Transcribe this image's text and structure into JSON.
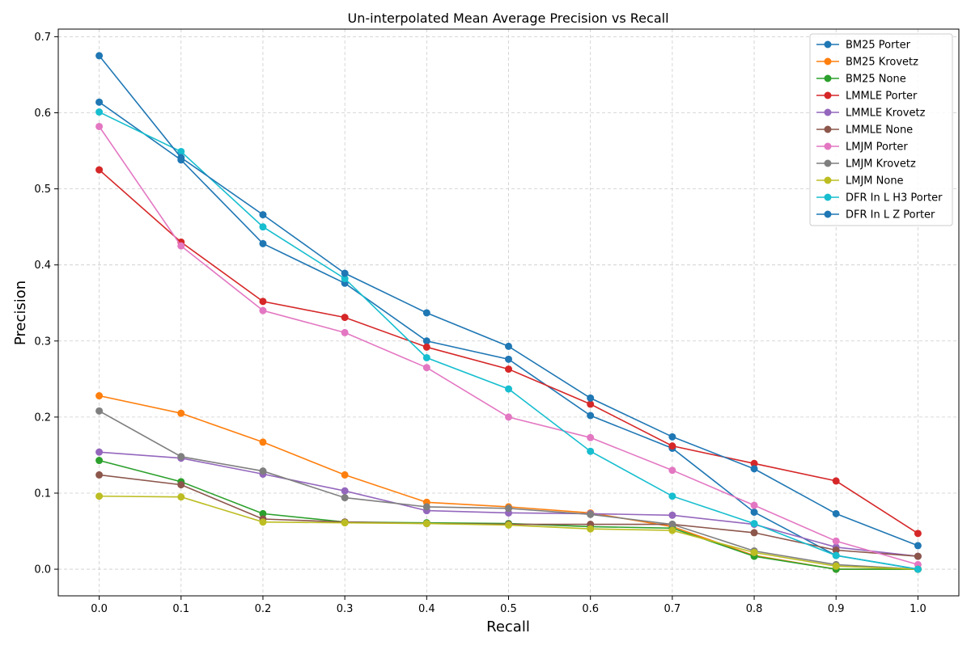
{
  "chart_data": {
    "type": "line",
    "title": "Un-interpolated Mean Average Precision vs Recall",
    "xlabel": "Recall",
    "ylabel": "Precision",
    "xlim": [
      -0.05,
      1.05
    ],
    "ylim": [
      -0.035,
      0.71
    ],
    "x_ticks": [
      "0.0",
      "0.1",
      "0.2",
      "0.3",
      "0.4",
      "0.5",
      "0.6",
      "0.7",
      "0.8",
      "0.9",
      "1.0"
    ],
    "y_ticks": [
      "0.0",
      "0.1",
      "0.2",
      "0.3",
      "0.4",
      "0.5",
      "0.6",
      "0.7"
    ],
    "grid": true,
    "legend_position": "top-right",
    "x": [
      0.0,
      0.1,
      0.2,
      0.3,
      0.4,
      0.5,
      0.6,
      0.7,
      0.8,
      0.9,
      1.0
    ],
    "series": [
      {
        "name": "BM25 Porter",
        "color": "#1f77b4",
        "values": [
          0.614,
          0.538,
          0.428,
          0.376,
          0.3,
          0.276,
          0.202,
          0.159,
          0.075,
          0.018,
          0.0
        ]
      },
      {
        "name": "BM25 Krovetz",
        "color": "#ff7f0e",
        "values": [
          0.228,
          0.205,
          0.167,
          0.124,
          0.088,
          0.082,
          0.074,
          0.056,
          0.018,
          0.0,
          0.0
        ]
      },
      {
        "name": "BM25 None",
        "color": "#2ca02c",
        "values": [
          0.143,
          0.115,
          0.073,
          0.062,
          0.061,
          0.06,
          0.056,
          0.054,
          0.017,
          0.0,
          0.0
        ]
      },
      {
        "name": "LMMLE Porter",
        "color": "#d62728",
        "values": [
          0.525,
          0.43,
          0.352,
          0.331,
          0.292,
          0.263,
          0.217,
          0.162,
          0.139,
          0.116,
          0.047
        ]
      },
      {
        "name": "LMMLE Krovetz",
        "color": "#9467bd",
        "values": [
          0.154,
          0.146,
          0.125,
          0.103,
          0.077,
          0.074,
          0.073,
          0.071,
          0.059,
          0.029,
          0.017
        ]
      },
      {
        "name": "LMMLE None",
        "color": "#8c564b",
        "values": [
          0.124,
          0.111,
          0.066,
          0.062,
          0.06,
          0.059,
          0.059,
          0.059,
          0.048,
          0.025,
          0.017
        ]
      },
      {
        "name": "LMJM Porter",
        "color": "#e377c2",
        "values": [
          0.582,
          0.425,
          0.34,
          0.311,
          0.265,
          0.2,
          0.173,
          0.13,
          0.084,
          0.037,
          0.006
        ]
      },
      {
        "name": "LMJM Krovetz",
        "color": "#7f7f7f",
        "values": [
          0.208,
          0.148,
          0.129,
          0.094,
          0.082,
          0.08,
          0.072,
          0.059,
          0.024,
          0.006,
          0.0
        ]
      },
      {
        "name": "LMJM None",
        "color": "#bcbd22",
        "values": [
          0.096,
          0.095,
          0.062,
          0.061,
          0.06,
          0.058,
          0.053,
          0.051,
          0.022,
          0.004,
          0.0
        ]
      },
      {
        "name": "DFR In L H3 Porter",
        "color": "#17becf",
        "values": [
          0.601,
          0.549,
          0.45,
          0.382,
          0.278,
          0.237,
          0.155,
          0.096,
          0.06,
          0.018,
          0.0
        ]
      },
      {
        "name": "DFR In L Z Porter",
        "color": "#1f77b4",
        "values": [
          0.675,
          0.541,
          0.466,
          0.389,
          0.337,
          0.293,
          0.225,
          0.174,
          0.132,
          0.073,
          0.031
        ]
      }
    ]
  }
}
